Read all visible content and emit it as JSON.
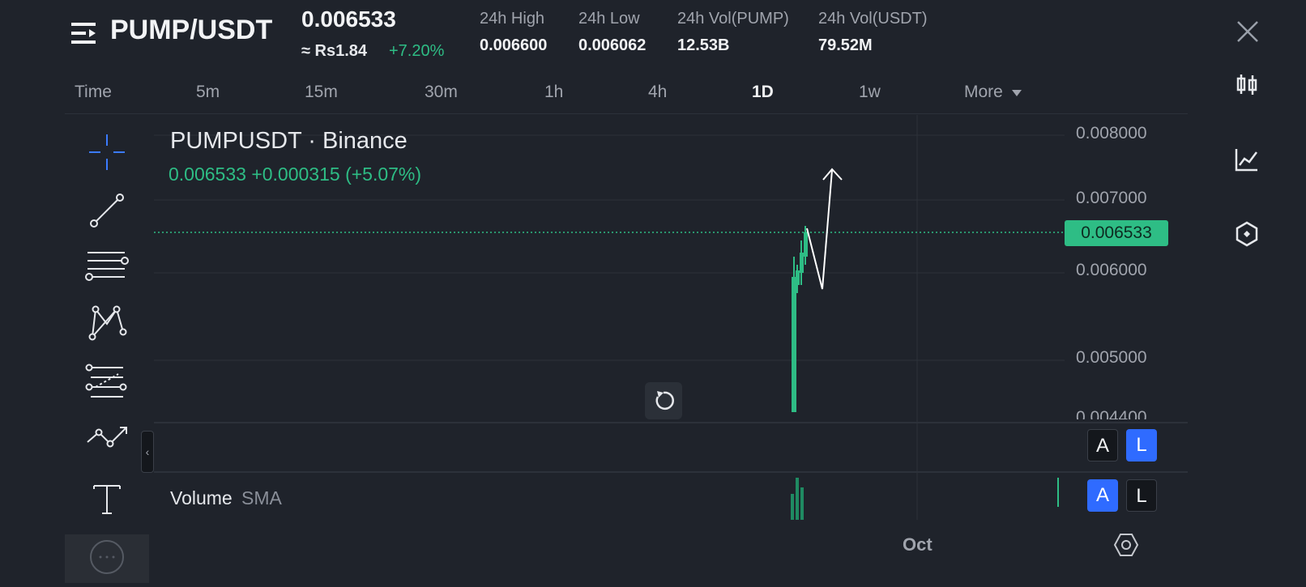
{
  "header": {
    "pair": "PUMP/USDT",
    "price": "0.006533",
    "fiat_price": "≈ Rs1.84",
    "change_pct": "+7.20%",
    "stats": [
      {
        "label": "24h High",
        "value": "0.006600"
      },
      {
        "label": "24h Low",
        "value": "0.006062"
      },
      {
        "label": "24h Vol(PUMP)",
        "value": "12.53B"
      },
      {
        "label": "24h Vol(USDT)",
        "value": "79.52M"
      }
    ]
  },
  "timeframes": {
    "time": "Time",
    "items": [
      "5m",
      "15m",
      "30m",
      "1h",
      "4h",
      "1D",
      "1w"
    ],
    "active": "1D",
    "more": "More"
  },
  "chart": {
    "symbol": "PUMPUSDT · Binance",
    "ohlc": "0.006533  +0.000315 (+5.07%)",
    "last_price": "0.006533",
    "y_ticks": [
      "0.008000",
      "0.007000",
      "0.006000",
      "0.005000",
      "0.004400"
    ],
    "x_label": "Oct",
    "volume_label": "Volume",
    "volume_sub": "SMA",
    "scale_buttons_top": [
      "A",
      "L"
    ],
    "scale_buttons_bottom": [
      "A",
      "L"
    ],
    "up_color": "#2ebd85"
  },
  "icons": {
    "menu": "menu-icon",
    "close": "close-icon",
    "right_toolbar": [
      "candlestick-icon",
      "line-chart-icon",
      "indicator-icon"
    ],
    "left_toolbar": [
      "crosshair-icon",
      "trendline-icon",
      "horizontal-lines-icon",
      "pattern-icon",
      "fib-icon",
      "path-icon",
      "text-icon"
    ],
    "reset": "reset-icon",
    "settings": "settings-icon"
  }
}
